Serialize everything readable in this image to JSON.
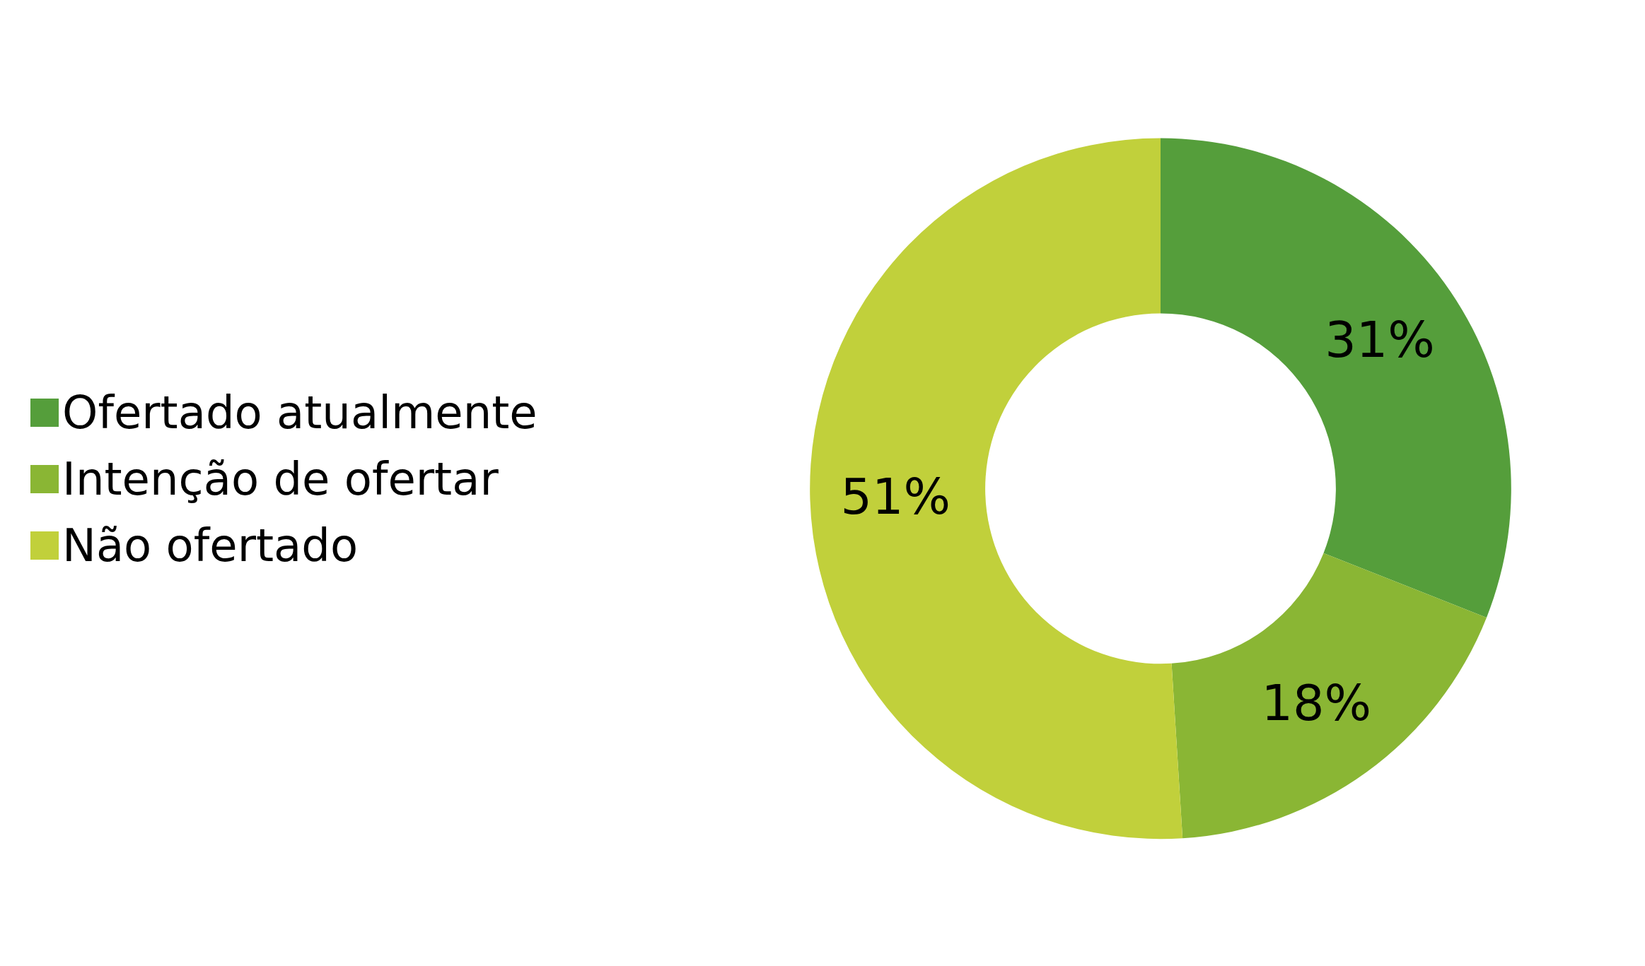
{
  "chart_data": {
    "type": "donut",
    "categories": [
      "Ofertado atualmente",
      "Intenção de ofertar",
      "Não ofertado"
    ],
    "values": [
      31,
      18,
      51
    ],
    "colors": [
      "#559e3b",
      "#8ab634",
      "#c1d03b"
    ],
    "value_labels": [
      "31%",
      "18%",
      "51%"
    ],
    "legend": "left"
  }
}
